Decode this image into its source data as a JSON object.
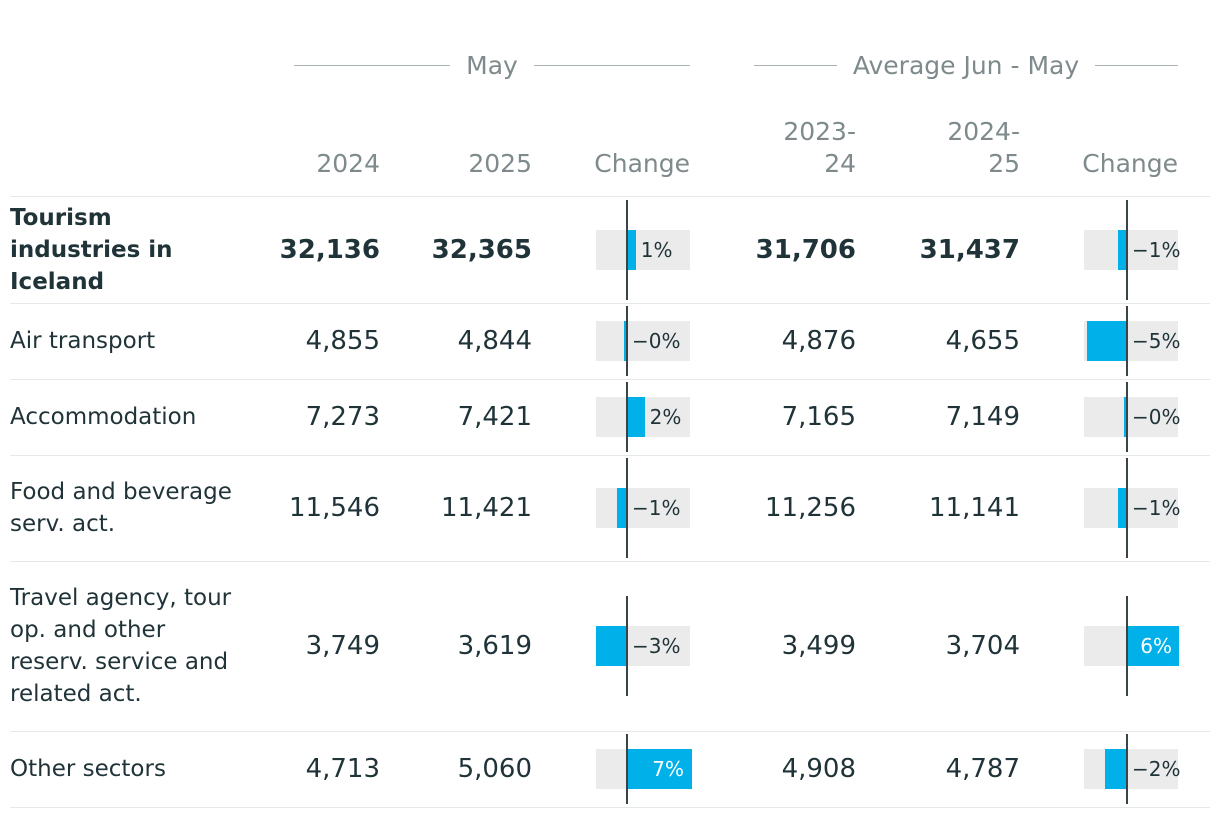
{
  "groups": {
    "may": "May",
    "avg": "Average Jun - May"
  },
  "columns": {
    "may_2024": "2024",
    "may_2025": "2025",
    "may_change": "Change",
    "avg_2023_line1": "2023-",
    "avg_2023_line2": "24",
    "avg_2024_line1": "2024-",
    "avg_2024_line2": "25",
    "avg_change": "Change"
  },
  "colors": {
    "bar": "#00b0e8",
    "bar_bg": "#ebebeb",
    "axis": "#3a4447",
    "header_text": "#7e8a8c",
    "text": "#1f3338"
  },
  "chart_data": {
    "type": "table",
    "rows": [
      {
        "label": "Tourism industries in Iceland",
        "may_2024": "32,136",
        "may_2025": "32,365",
        "may_change": 1,
        "may_change_label": "1%",
        "avg_2023_24": "31,706",
        "avg_2024_25": "31,437",
        "avg_change": -1,
        "avg_change_label": "−1%",
        "bold": true
      },
      {
        "label": "Air transport",
        "may_2024": "4,855",
        "may_2025": "4,844",
        "may_change": -0.2,
        "may_change_label": "−0%",
        "avg_2023_24": "4,876",
        "avg_2024_25": "4,655",
        "avg_change": -4.5,
        "avg_change_label": "−5%"
      },
      {
        "label": "Accommodation",
        "may_2024": "7,273",
        "may_2025": "7,421",
        "may_change": 2,
        "may_change_label": "2%",
        "avg_2023_24": "7,165",
        "avg_2024_25": "7,149",
        "avg_change": -0.2,
        "avg_change_label": "−0%"
      },
      {
        "label": "Food and beverage serv. act.",
        "may_2024": "11,546",
        "may_2025": "11,421",
        "may_change": -1.1,
        "may_change_label": "−1%",
        "avg_2023_24": "11,256",
        "avg_2024_25": "11,141",
        "avg_change": -1,
        "avg_change_label": "−1%"
      },
      {
        "label": "Travel agency, tour op. and other reserv. service and related act.",
        "may_2024": "3,749",
        "may_2025": "3,619",
        "may_change": -3.5,
        "may_change_label": "−3%",
        "avg_2023_24": "3,499",
        "avg_2024_25": "3,704",
        "avg_change": 5.9,
        "avg_change_label": "6%"
      },
      {
        "label": "Other sectors",
        "may_2024": "4,713",
        "may_2025": "5,060",
        "may_change": 7.4,
        "may_change_label": "7%",
        "avg_2023_24": "4,908",
        "avg_2024_25": "4,787",
        "avg_change": -2.5,
        "avg_change_label": "−2%"
      }
    ]
  }
}
